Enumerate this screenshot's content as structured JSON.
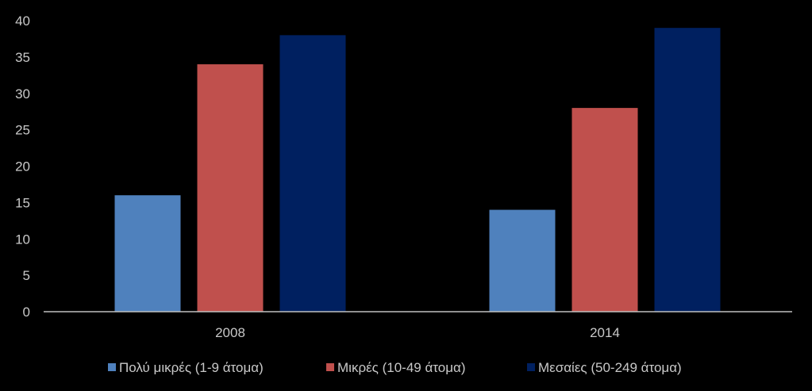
{
  "chart_data": {
    "type": "bar",
    "categories": [
      "2008",
      "2014"
    ],
    "series": [
      {
        "name": "Πολύ μικρές (1-9 άτομα)",
        "color": "#4f81bd",
        "values": [
          16,
          14
        ]
      },
      {
        "name": "Μικρές (10-49 άτομα)",
        "color": "#c0504d",
        "values": [
          34,
          28
        ]
      },
      {
        "name": "Μεσαίες  (50-249 άτομα)",
        "color": "#002060",
        "values": [
          38,
          39
        ]
      }
    ],
    "ylim": [
      0,
      40
    ],
    "yticks": [
      0,
      5,
      10,
      15,
      20,
      25,
      30,
      35,
      40
    ],
    "grid": false,
    "legend": "bottom",
    "background": "#000000",
    "text_color": "#c8c8c8"
  }
}
